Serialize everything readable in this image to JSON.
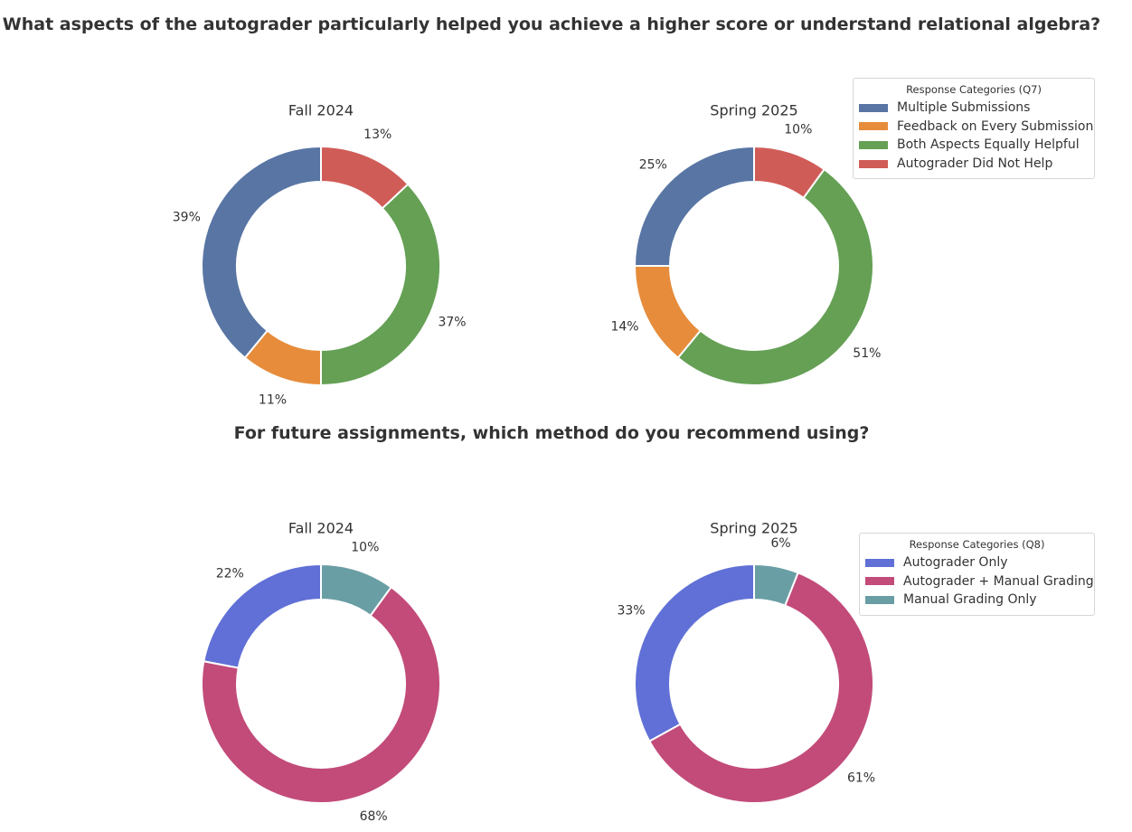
{
  "sections": [
    {
      "title": "What aspects of the autograder particularly helped you achieve a higher score or understand relational algebra?",
      "legend_title": "Response Categories (Q7)"
    },
    {
      "title": "For future assignments, which method do you recommend using?",
      "legend_title": "Response Categories (Q8)"
    }
  ],
  "chart_data": [
    {
      "type": "pie",
      "variant": "donut",
      "question": "Q7",
      "title": "Fall 2024",
      "categories": [
        "Multiple Submissions",
        "Feedback on Every Submission",
        "Both Aspects Equally Helpful",
        "Autograder Did Not Help"
      ],
      "values": [
        39,
        11,
        37,
        13
      ],
      "value_labels": [
        "39%",
        "11%",
        "37%",
        "13%"
      ],
      "colors": [
        "#5875a4",
        "#e68c3b",
        "#65a055",
        "#d05c58"
      ],
      "start_angle_deg": 90,
      "direction": "counterclockwise"
    },
    {
      "type": "pie",
      "variant": "donut",
      "question": "Q7",
      "title": "Spring 2025",
      "categories": [
        "Multiple Submissions",
        "Feedback on Every Submission",
        "Both Aspects Equally Helpful",
        "Autograder Did Not Help"
      ],
      "values": [
        25,
        14,
        51,
        10
      ],
      "value_labels": [
        "25%",
        "14%",
        "51%",
        "10%"
      ],
      "colors": [
        "#5875a4",
        "#e68c3b",
        "#65a055",
        "#d05c58"
      ],
      "start_angle_deg": 90,
      "direction": "counterclockwise"
    },
    {
      "type": "pie",
      "variant": "donut",
      "question": "Q8",
      "title": "Fall 2024",
      "categories": [
        "Autograder Only",
        "Autograder + Manual Grading",
        "Manual Grading Only"
      ],
      "values": [
        22,
        68,
        10
      ],
      "value_labels": [
        "22%",
        "68%",
        "10%"
      ],
      "colors": [
        "#6070d6",
        "#c24b7a",
        "#699ea4"
      ],
      "start_angle_deg": 90,
      "direction": "counterclockwise"
    },
    {
      "type": "pie",
      "variant": "donut",
      "question": "Q8",
      "title": "Spring 2025",
      "categories": [
        "Autograder Only",
        "Autograder + Manual Grading",
        "Manual Grading Only"
      ],
      "values": [
        33,
        61,
        6
      ],
      "value_labels": [
        "33%",
        "61%",
        "6%"
      ],
      "colors": [
        "#6070d6",
        "#c24b7a",
        "#699ea4"
      ],
      "start_angle_deg": 90,
      "direction": "counterclockwise"
    }
  ],
  "legends": [
    {
      "title": "Response Categories (Q7)",
      "items": [
        {
          "label": "Multiple Submissions",
          "color": "#5875a4"
        },
        {
          "label": "Feedback on Every Submission",
          "color": "#e68c3b"
        },
        {
          "label": "Both Aspects Equally Helpful",
          "color": "#65a055"
        },
        {
          "label": "Autograder Did Not Help",
          "color": "#d05c58"
        }
      ]
    },
    {
      "title": "Response Categories (Q8)",
      "items": [
        {
          "label": "Autograder Only",
          "color": "#6070d6"
        },
        {
          "label": "Autograder + Manual Grading",
          "color": "#c24b7a"
        },
        {
          "label": "Manual Grading Only",
          "color": "#699ea4"
        }
      ]
    }
  ]
}
